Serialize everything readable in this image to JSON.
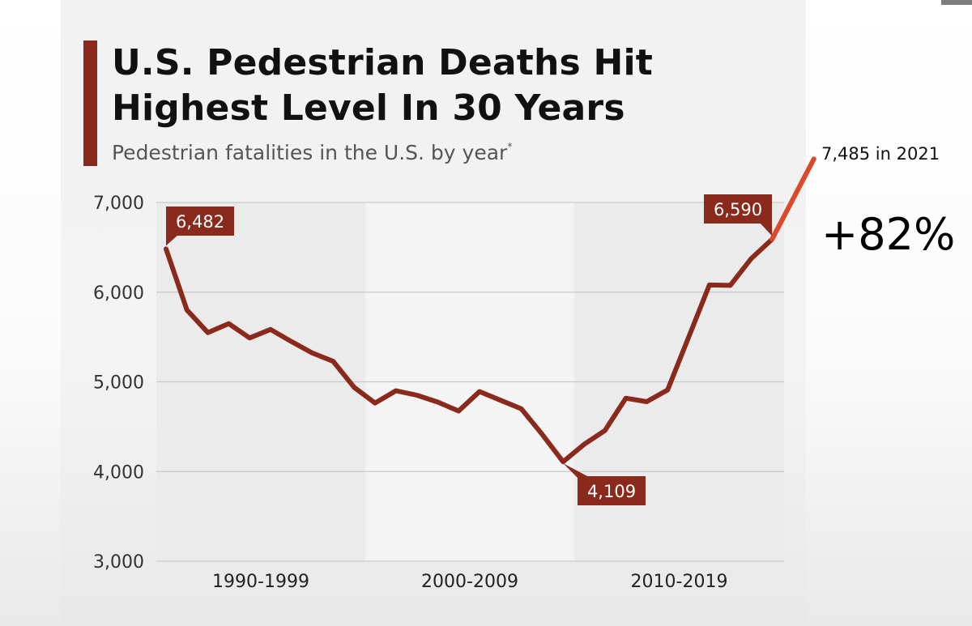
{
  "colors": {
    "line": "#8a2a1c",
    "extension": "#d9492a",
    "grid": "#c9c9c9"
  },
  "chart_data": {
    "type": "line",
    "title": "U.S. Pedestrian Deaths Hit Highest Level In 30 Years",
    "title_lines": [
      "U.S. Pedestrian Deaths Hit",
      "Highest Level In 30 Years"
    ],
    "subtitle": "Pedestrian fatalities in the U.S. by year",
    "subtitle_mark": "*",
    "ylim": [
      3000,
      7000
    ],
    "yticks": [
      7000,
      6000,
      5000,
      4000,
      3000
    ],
    "ytick_labels": [
      "7,000",
      "6,000",
      "5,000",
      "4,000",
      "3,000"
    ],
    "grid": true,
    "period_bands": [
      "1990-1999",
      "2000-2009",
      "2010-2019"
    ],
    "series": [
      {
        "x": [
          1990,
          1991,
          1992,
          1993,
          1994,
          1995,
          1996,
          1997,
          1998,
          1999,
          2000,
          2001,
          2002,
          2003,
          2004,
          2005,
          2006,
          2007,
          2008,
          2009,
          2010,
          2011,
          2012,
          2013,
          2014,
          2015,
          2016,
          2017,
          2018,
          2019
        ],
        "values": [
          6482,
          5801,
          5549,
          5649,
          5489,
          5584,
          5449,
          5321,
          5228,
          4939,
          4763,
          4901,
          4851,
          4774,
          4675,
          4892,
          4795,
          4699,
          4414,
          4109,
          4302,
          4457,
          4818,
          4779,
          4910,
          5494,
          6080,
          6075,
          6374,
          6590
        ]
      },
      {
        "x": [
          2019,
          2021
        ],
        "values": [
          6590,
          7485
        ]
      }
    ],
    "callouts": [
      {
        "text": "6,482",
        "year": 1990,
        "value": 6482
      },
      {
        "text": "4,109",
        "year": 2009,
        "value": 4109
      },
      {
        "text": "6,590",
        "year": 2019,
        "value": 6590
      }
    ],
    "annotations": {
      "latest": "7,485 in 2021",
      "change": "+82%"
    }
  }
}
